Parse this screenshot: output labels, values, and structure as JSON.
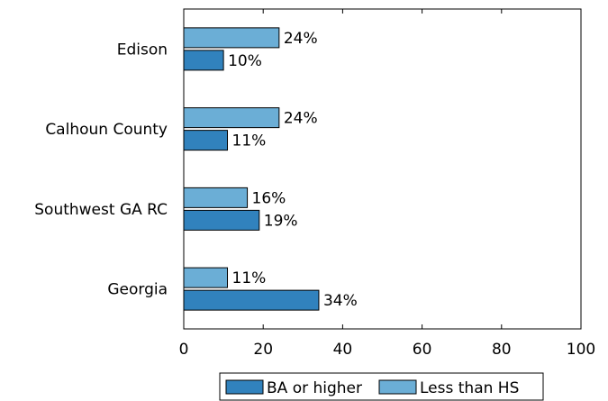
{
  "chart_data": {
    "type": "bar",
    "orientation": "horizontal",
    "categories": [
      "Edison",
      "Calhoun County",
      "Southwest GA RC",
      "Georgia"
    ],
    "series": [
      {
        "name": "Less than HS",
        "values": [
          24,
          24,
          16,
          11
        ],
        "labels": [
          "24%",
          "24%",
          "16%",
          "11%"
        ]
      },
      {
        "name": "BA or higher",
        "values": [
          10,
          11,
          19,
          34
        ],
        "labels": [
          "10%",
          "11%",
          "19%",
          "34%"
        ]
      }
    ],
    "xlim": [
      0,
      100
    ],
    "xticks": [
      "0",
      "20",
      "40",
      "60",
      "80",
      "100"
    ],
    "grid": false,
    "legend": {
      "placement": "bottom",
      "order": [
        "BA or higher",
        "Less than HS"
      ]
    },
    "colors": {
      "Less than HS": "#6baed6",
      "BA or higher": "#3182bd"
    }
  }
}
